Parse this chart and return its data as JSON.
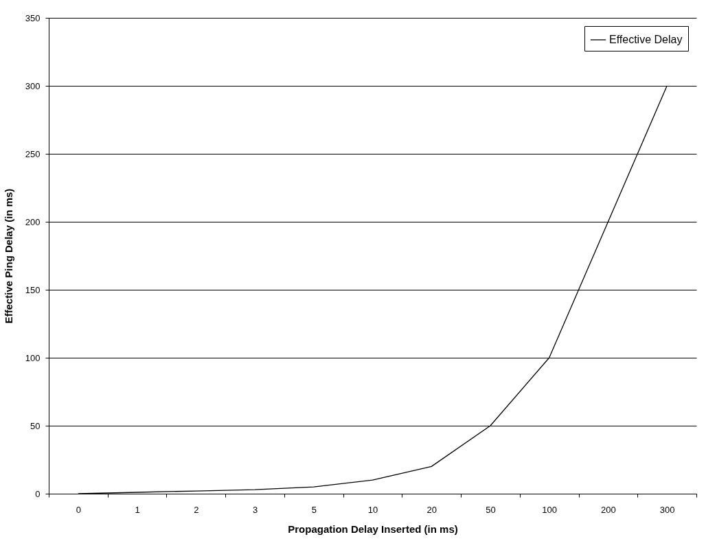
{
  "chart_data": {
    "type": "line",
    "xlabel": "Propagation Delay Inserted (in ms)",
    "ylabel": "Effective Ping Delay (in ms)",
    "categories": [
      "0",
      "1",
      "2",
      "3",
      "5",
      "10",
      "20",
      "50",
      "100",
      "200",
      "300"
    ],
    "series": [
      {
        "name": "Effective Delay",
        "color": "#000000",
        "values": [
          0,
          1,
          2,
          3,
          5,
          10,
          20,
          50,
          100,
          200,
          300
        ]
      }
    ],
    "ylim": [
      0,
      350
    ],
    "yticks": [
      0,
      50,
      100,
      150,
      200,
      250,
      300,
      350
    ],
    "grid": "y",
    "legend": "top right",
    "marker": "none",
    "line_style": "solid"
  }
}
